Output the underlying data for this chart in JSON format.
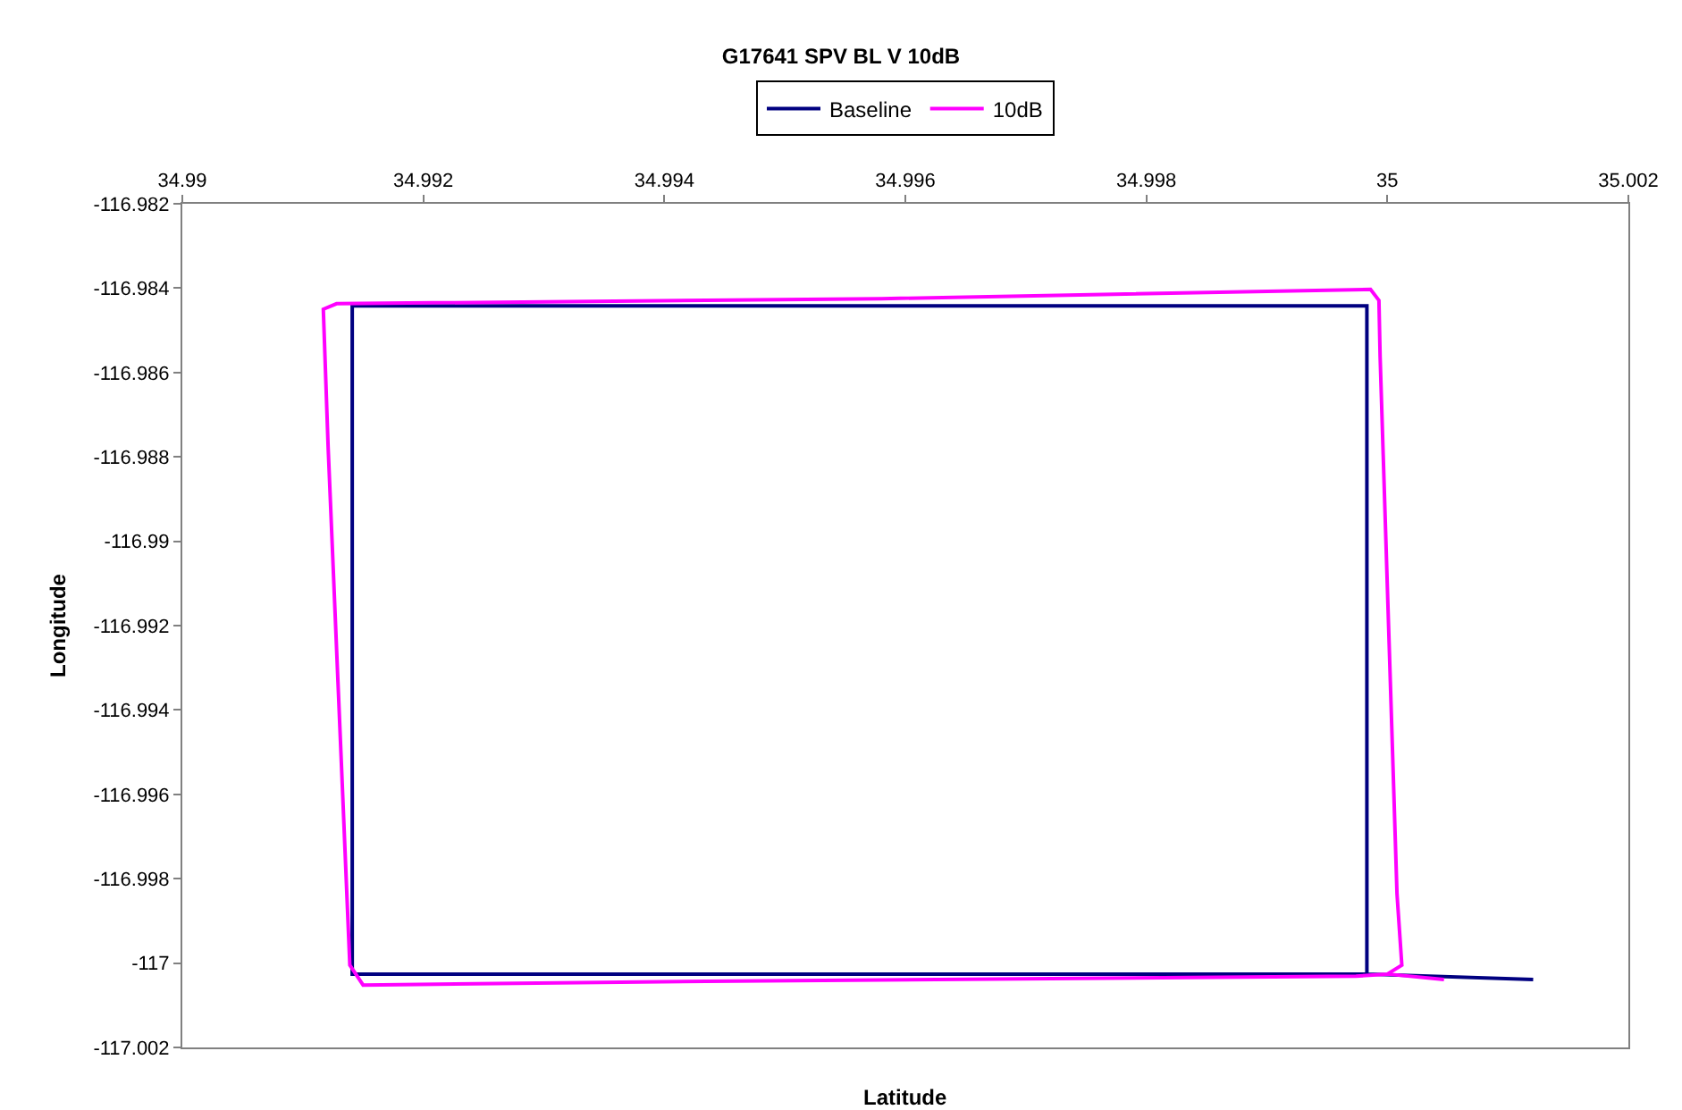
{
  "chart_data": {
    "type": "line",
    "title": "G17641 SPV BL V 10dB",
    "xlabel": "Latitude",
    "ylabel": "Longitude",
    "xlim": [
      34.99,
      35.002
    ],
    "xticks": [
      34.99,
      34.992,
      34.994,
      34.996,
      34.998,
      35,
      35.002
    ],
    "ylim": [
      -117.002,
      -116.982
    ],
    "yticks": [
      -116.982,
      -116.984,
      -116.986,
      -116.988,
      -116.99,
      -116.992,
      -116.994,
      -116.996,
      -116.998,
      -117,
      -117.002
    ],
    "legend": "top",
    "marker": "none",
    "line_style": "solid",
    "series": [
      {
        "name": "Baseline",
        "color": "#000080",
        "x": [
          35.00121,
          34.99983,
          34.99983,
          34.99141,
          34.99141,
          34.99983
        ],
        "values": [
          -117.00039,
          -117.00026,
          -116.98442,
          -116.98442,
          -117.00026,
          -117.00026
        ]
      },
      {
        "name": "10dB",
        "color": "#ff00ff",
        "x": [
          35.00047,
          35.0,
          35.00012,
          35.00008,
          34.99994,
          34.99993,
          34.99986,
          34.9958,
          34.99128,
          34.99117,
          34.99121,
          34.99139,
          34.9915,
          34.99435,
          34.99974,
          35.0
        ],
        "values": [
          -117.00039,
          -117.00026,
          -117.00005,
          -116.99836,
          -116.98564,
          -116.98429,
          -116.98403,
          -116.98425,
          -116.98437,
          -116.9845,
          -116.98776,
          -117.00005,
          -117.00052,
          -117.00043,
          -117.00031,
          -117.00026
        ]
      }
    ]
  }
}
